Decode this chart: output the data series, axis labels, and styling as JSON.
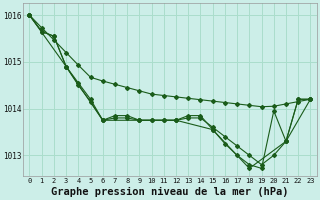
{
  "background_color": "#cceee8",
  "grid_color": "#aaddcc",
  "line_color": "#1a5c1a",
  "title": "Graphe pression niveau de la mer (hPa)",
  "title_fontsize": 7.5,
  "xlim": [
    -0.5,
    23.5
  ],
  "ylim": [
    1012.55,
    1016.25
  ],
  "yticks": [
    1013,
    1014,
    1015,
    1016
  ],
  "xticks": [
    0,
    1,
    2,
    3,
    4,
    5,
    6,
    7,
    8,
    9,
    10,
    11,
    12,
    13,
    14,
    15,
    16,
    17,
    18,
    19,
    20,
    21,
    22,
    23
  ],
  "series": [
    {
      "x": [
        0,
        1,
        2,
        3,
        4,
        5,
        6,
        7,
        8,
        9,
        10,
        11,
        12,
        13,
        14,
        15,
        16,
        17,
        18,
        19,
        20,
        21,
        22,
        23
      ],
      "y": [
        1016.0,
        1015.73,
        1015.47,
        1015.2,
        1014.93,
        1014.67,
        1014.59,
        1014.52,
        1014.45,
        1014.38,
        1014.31,
        1014.28,
        1014.25,
        1014.22,
        1014.19,
        1014.16,
        1014.13,
        1014.1,
        1014.07,
        1014.04,
        1014.05,
        1014.1,
        1014.15,
        1014.2
      ]
    },
    {
      "x": [
        0,
        1,
        2,
        3,
        4,
        5,
        6,
        7,
        8,
        9,
        10,
        11,
        12,
        13,
        14,
        15,
        16,
        17,
        18,
        19,
        20,
        21,
        22,
        23
      ],
      "y": [
        1016.0,
        1015.65,
        1015.55,
        1014.9,
        1014.55,
        1014.2,
        1013.75,
        1013.8,
        1013.8,
        1013.75,
        1013.75,
        1013.75,
        1013.75,
        1013.8,
        1013.8,
        1013.6,
        1013.4,
        1013.2,
        1013.0,
        1012.8,
        1013.0,
        1013.3,
        1014.2,
        1014.2
      ]
    },
    {
      "x": [
        0,
        1,
        2,
        3,
        4,
        5,
        6,
        7,
        8,
        9,
        10,
        11,
        12,
        13,
        14,
        15,
        16,
        17,
        18,
        19,
        20,
        21,
        22,
        23
      ],
      "y": [
        1016.0,
        1015.65,
        1015.55,
        1014.9,
        1014.5,
        1014.15,
        1013.75,
        1013.85,
        1013.85,
        1013.75,
        1013.75,
        1013.75,
        1013.75,
        1013.85,
        1013.85,
        1013.55,
        1013.25,
        1013.0,
        1012.8,
        1012.72,
        1013.95,
        1013.3,
        1014.2,
        1014.2
      ]
    },
    {
      "x": [
        0,
        3,
        6,
        9,
        12,
        15,
        18,
        21,
        23
      ],
      "y": [
        1016.0,
        1014.9,
        1013.75,
        1013.75,
        1013.75,
        1013.55,
        1012.72,
        1013.3,
        1014.2
      ]
    }
  ]
}
